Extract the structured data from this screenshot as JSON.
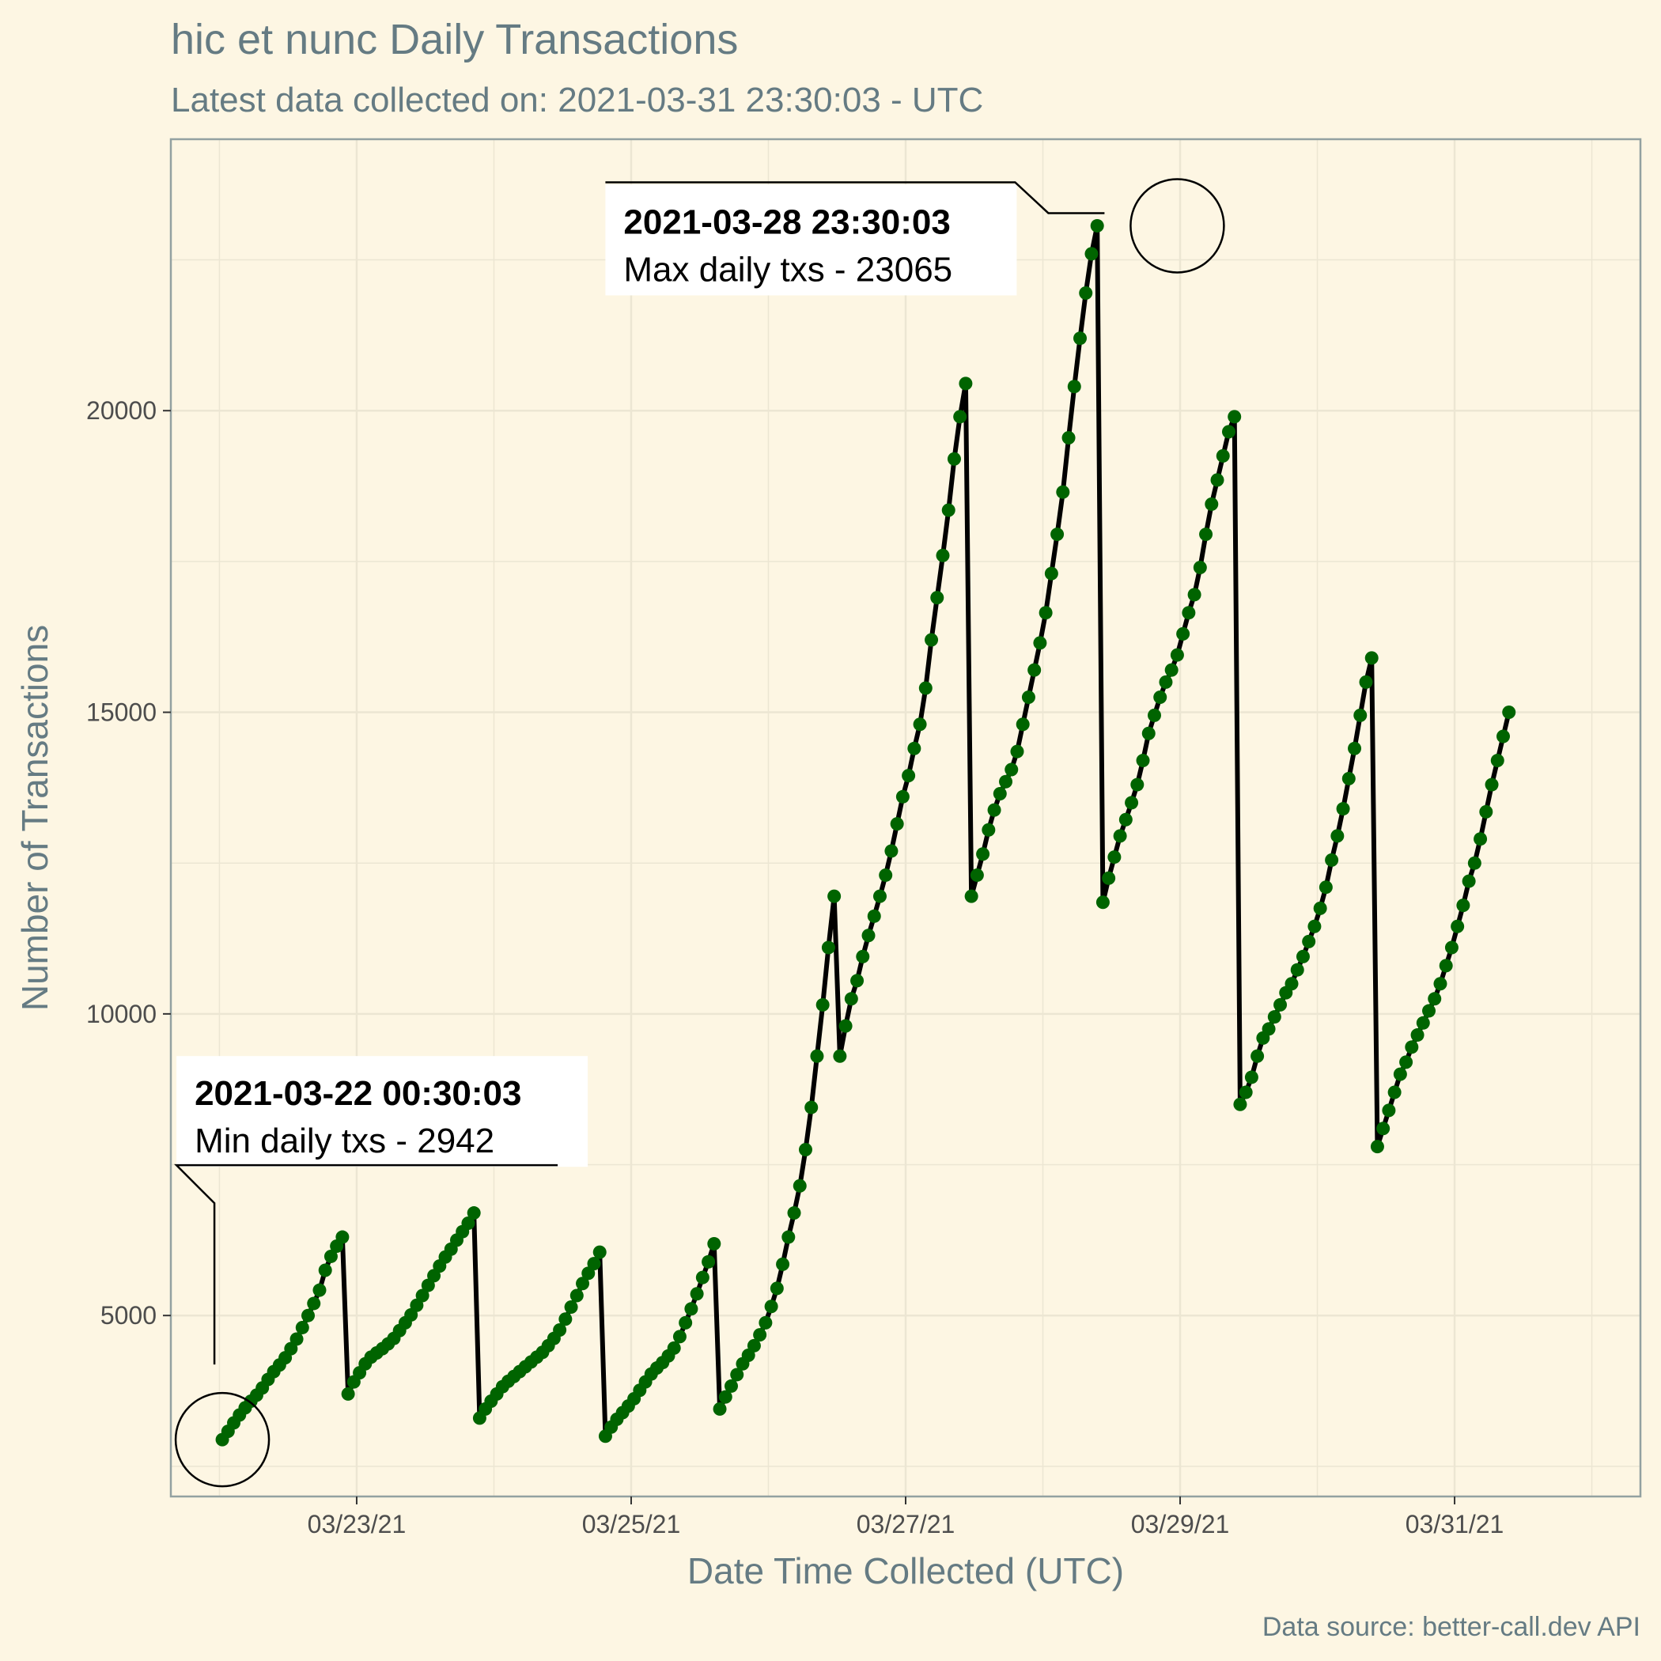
{
  "chart_data": {
    "type": "line",
    "title": "hic et nunc Daily Transactions",
    "subtitle": "Latest data collected on: 2021-03-31 23:30:03  - UTC",
    "xlabel": "Date Time Collected (UTC)",
    "ylabel": "Number of Transactions",
    "caption": "Data source: better-call.dev API",
    "xlim": [
      "2021-03-21 15:30",
      "2021-04-01 08:30"
    ],
    "ylim": [
      2000,
      24500
    ],
    "x_ticks": [
      "03/23/21",
      "03/25/21",
      "03/27/21",
      "03/29/21",
      "03/31/21"
    ],
    "y_ticks": [
      5000,
      10000,
      15000,
      20000
    ],
    "grid": true,
    "line_color": "#000000",
    "point_color": "#006400",
    "series": [
      {
        "start": "2021-03-22 00:30:03",
        "step_hours": 1,
        "values": [
          2942,
          3080,
          3220,
          3350,
          3470,
          3580,
          3680,
          3800,
          3940,
          4070,
          4180,
          4300,
          4450,
          4610,
          4800,
          5000,
          5200,
          5420,
          5750,
          5980,
          6150,
          6300,
          3700,
          3900,
          4050,
          4200,
          4310,
          4380,
          4450,
          4530,
          4620,
          4750,
          4880,
          5010,
          5170,
          5330,
          5500,
          5660,
          5820,
          5970,
          6100,
          6250,
          6390,
          6530,
          6700,
          3300,
          3450,
          3580,
          3700,
          3820,
          3910,
          3990,
          4070,
          4150,
          4230,
          4310,
          4390,
          4500,
          4620,
          4760,
          4940,
          5140,
          5330,
          5530,
          5700,
          5860,
          6050,
          3000,
          3150,
          3280,
          3390,
          3500,
          3620,
          3760,
          3900,
          4030,
          4130,
          4220,
          4330,
          4460,
          4650,
          4880,
          5110,
          5360,
          5630,
          5890,
          6190,
          3450,
          3650,
          3830,
          4020,
          4200,
          4340,
          4500,
          4680,
          4880,
          5150,
          5450,
          5850,
          6300,
          6700,
          7150,
          7750,
          8450,
          9300,
          10150,
          11100,
          11950,
          9300,
          9800,
          10250,
          10550,
          10950,
          11300,
          11620,
          11950,
          12300,
          12700,
          13150,
          13600,
          13950,
          14400,
          14800,
          15400,
          16200,
          16900,
          17600,
          18350,
          19200,
          19900,
          20450,
          11950,
          12300,
          12650,
          13050,
          13380,
          13650,
          13850,
          14050,
          14350,
          14800,
          15250,
          15700,
          16150,
          16650,
          17300,
          17950,
          18650,
          19550,
          20400,
          21200,
          21950,
          22600,
          23065,
          11850,
          12250,
          12600,
          12950,
          13220,
          13500,
          13800,
          14200,
          14650,
          14950,
          15250,
          15500,
          15700,
          15950,
          16300,
          16650,
          16950,
          17400,
          17950,
          18450,
          18850,
          19250,
          19650,
          19900,
          8500,
          8700,
          8950,
          9300,
          9600,
          9750,
          9950,
          10150,
          10350,
          10500,
          10730,
          10950,
          11200,
          11450,
          11750,
          12100,
          12550,
          12950,
          13400,
          13900,
          14400,
          14950,
          15500,
          15900,
          7800,
          8100,
          8400,
          8700,
          9000,
          9200,
          9450,
          9650,
          9850,
          10050,
          10250,
          10500,
          10800,
          11100,
          11450,
          11800,
          12200,
          12500,
          12900,
          13350,
          13800,
          14200,
          14600,
          15000
        ]
      }
    ],
    "annotations": [
      {
        "kind": "min",
        "time": "2021-03-22 00:30:03",
        "value": 2942,
        "heading": "2021-03-22 00:30:03",
        "text": "Min daily txs - 2942"
      },
      {
        "kind": "max",
        "time": "2021-03-28 23:30:03",
        "value": 23065,
        "heading": "2021-03-28 23:30:03",
        "text": "Max daily txs - 23065"
      }
    ]
  }
}
